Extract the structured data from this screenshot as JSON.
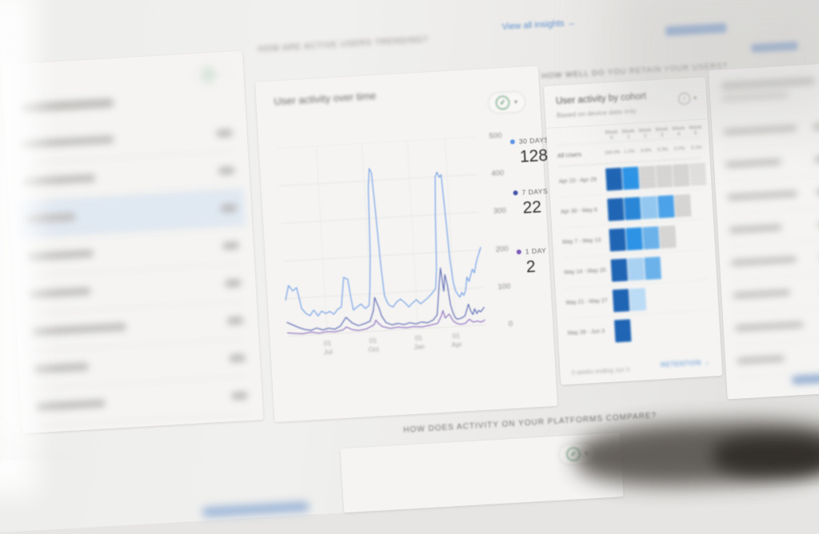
{
  "header": {
    "insights_link": "View all insights →"
  },
  "sections": {
    "trending_header": "HOW ARE ACTIVE USERS TRENDING?",
    "retain_header": "HOW WELL DO YOU RETAIN YOUR USERS?",
    "platforms_header": "HOW DOES ACTIVITY ON YOUR PLATFORMS COMPARE?"
  },
  "icons": {
    "check": "✓",
    "caret": "▾",
    "info": "i"
  },
  "chart_data": [
    {
      "type": "line",
      "title": "User activity over time",
      "ylabel": "",
      "xlabel": "",
      "ylim": [
        0,
        500
      ],
      "y_ticks": [
        500,
        400,
        300,
        200,
        100,
        0
      ],
      "x_ticks": [
        [
          "01",
          "Jul"
        ],
        [
          "01",
          "Oct"
        ],
        [
          "01",
          "Jan"
        ],
        [
          "01",
          "Apr"
        ]
      ],
      "x_tick_pos": [
        20,
        43,
        66,
        85
      ],
      "grid": true,
      "legend_position": "right",
      "series": [
        {
          "name": "30 DAYS",
          "current": "128",
          "color": "#5793f3",
          "points": [
            [
              0,
              95
            ],
            [
              2,
              135
            ],
            [
              4,
              120
            ],
            [
              6,
              128
            ],
            [
              8,
              72
            ],
            [
              10,
              58
            ],
            [
              12,
              52
            ],
            [
              14,
              66
            ],
            [
              16,
              50
            ],
            [
              18,
              62
            ],
            [
              20,
              55
            ],
            [
              22,
              60
            ],
            [
              24,
              52
            ],
            [
              26,
              64
            ],
            [
              28,
              70
            ],
            [
              30,
              148
            ],
            [
              32,
              142
            ],
            [
              33,
              95
            ],
            [
              34,
              60
            ],
            [
              36,
              68
            ],
            [
              38,
              75
            ],
            [
              40,
              62
            ],
            [
              42,
              70
            ],
            [
              43,
              120
            ],
            [
              44,
              200
            ],
            [
              45,
              380
            ],
            [
              46,
              432
            ],
            [
              47,
              420
            ],
            [
              48,
              310
            ],
            [
              49,
              180
            ],
            [
              50,
              95
            ],
            [
              51,
              78
            ],
            [
              52,
              68
            ],
            [
              54,
              62
            ],
            [
              56,
              75
            ],
            [
              58,
              82
            ],
            [
              60,
              72
            ],
            [
              62,
              60
            ],
            [
              64,
              70
            ],
            [
              66,
              78
            ],
            [
              68,
              66
            ],
            [
              70,
              74
            ],
            [
              72,
              82
            ],
            [
              74,
              92
            ],
            [
              76,
              105
            ],
            [
              77,
              160
            ],
            [
              78,
              300
            ],
            [
              79,
              400
            ],
            [
              80,
              412
            ],
            [
              81,
              398
            ],
            [
              82,
              405
            ],
            [
              83,
              300
            ],
            [
              84,
              180
            ],
            [
              85,
              120
            ],
            [
              86,
              95
            ],
            [
              87,
              85
            ],
            [
              88,
              78
            ],
            [
              89,
              90
            ],
            [
              90,
              82
            ],
            [
              91,
              95
            ],
            [
              92,
              130
            ],
            [
              93,
              118
            ],
            [
              94,
              135
            ],
            [
              95,
              150
            ],
            [
              96,
              140
            ],
            [
              97,
              165
            ],
            [
              98,
              180
            ],
            [
              99,
              195
            ],
            [
              100,
              208
            ]
          ]
        },
        {
          "name": "7 DAYS",
          "current": "22",
          "color": "#3f51b5",
          "points": [
            [
              0,
              38
            ],
            [
              3,
              30
            ],
            [
              6,
              22
            ],
            [
              9,
              16
            ],
            [
              12,
              13
            ],
            [
              15,
              18
            ],
            [
              18,
              12
            ],
            [
              21,
              16
            ],
            [
              24,
              12
            ],
            [
              27,
              20
            ],
            [
              30,
              42
            ],
            [
              33,
              26
            ],
            [
              36,
              18
            ],
            [
              39,
              22
            ],
            [
              42,
              28
            ],
            [
              44,
              55
            ],
            [
              45,
              90
            ],
            [
              46,
              75
            ],
            [
              47,
              60
            ],
            [
              48,
              40
            ],
            [
              50,
              22
            ],
            [
              53,
              15
            ],
            [
              56,
              18
            ],
            [
              59,
              14
            ],
            [
              62,
              18
            ],
            [
              65,
              14
            ],
            [
              68,
              18
            ],
            [
              71,
              15
            ],
            [
              74,
              22
            ],
            [
              76,
              35
            ],
            [
              78,
              120
            ],
            [
              79,
              158
            ],
            [
              80,
              96
            ],
            [
              81,
              140
            ],
            [
              82,
              110
            ],
            [
              83,
              60
            ],
            [
              84,
              38
            ],
            [
              85,
              25
            ],
            [
              86,
              20
            ],
            [
              88,
              22
            ],
            [
              90,
              28
            ],
            [
              92,
              58
            ],
            [
              93,
              40
            ],
            [
              94,
              30
            ],
            [
              95,
              45
            ],
            [
              96,
              32
            ],
            [
              97,
              40
            ],
            [
              98,
              36
            ],
            [
              99,
              42
            ],
            [
              100,
              48
            ]
          ]
        },
        {
          "name": "1 DAY",
          "current": "2",
          "color": "#7e57c2",
          "points": [
            [
              0,
              10
            ],
            [
              4,
              7
            ],
            [
              8,
              5
            ],
            [
              12,
              8
            ],
            [
              16,
              4
            ],
            [
              20,
              7
            ],
            [
              24,
              5
            ],
            [
              28,
              9
            ],
            [
              30,
              16
            ],
            [
              33,
              8
            ],
            [
              36,
              5
            ],
            [
              40,
              8
            ],
            [
              44,
              18
            ],
            [
              45,
              30
            ],
            [
              46,
              22
            ],
            [
              48,
              12
            ],
            [
              52,
              6
            ],
            [
              56,
              8
            ],
            [
              60,
              5
            ],
            [
              64,
              7
            ],
            [
              68,
              5
            ],
            [
              72,
              8
            ],
            [
              76,
              12
            ],
            [
              78,
              30
            ],
            [
              79,
              45
            ],
            [
              80,
              25
            ],
            [
              82,
              35
            ],
            [
              84,
              15
            ],
            [
              86,
              8
            ],
            [
              88,
              6
            ],
            [
              90,
              8
            ],
            [
              92,
              18
            ],
            [
              94,
              10
            ],
            [
              96,
              12
            ],
            [
              98,
              9
            ],
            [
              100,
              14
            ]
          ]
        }
      ]
    },
    {
      "type": "heatmap",
      "title": "User activity by cohort",
      "subtitle": "Based on device data only",
      "columns": [
        "Week 0",
        "Week 1",
        "Week 2",
        "Week 3",
        "Week 4",
        "Week 5"
      ],
      "all_users": {
        "label": "All Users",
        "values": [
          "100.0%",
          "1.1%",
          "0.6%",
          "0.3%",
          "0.2%",
          "0.1%"
        ]
      },
      "rows": [
        {
          "label": "Apr 23 - Apr 29",
          "cells": [
            "#1565c0",
            "#2196f3",
            "#d9d8d6",
            "#d9d8d6",
            "#d9d8d6",
            "#e3e2e0"
          ]
        },
        {
          "label": "Apr 30 - May 6",
          "cells": [
            "#1565c0",
            "#1e88e5",
            "#90caf9",
            "#42a5f5",
            "#d9d8d6",
            ""
          ]
        },
        {
          "label": "May 7 - May 13",
          "cells": [
            "#1565c0",
            "#2196f3",
            "#64b5f6",
            "#d9d8d6",
            "",
            ""
          ]
        },
        {
          "label": "May 14 - May 20",
          "cells": [
            "#1565c0",
            "#a6d4fa",
            "#64b5f6",
            "",
            "",
            ""
          ]
        },
        {
          "label": "May 21 - May 27",
          "cells": [
            "#1565c0",
            "#bbdefb",
            "",
            "",
            "",
            ""
          ]
        },
        {
          "label": "May 28 - Jun 3",
          "cells": [
            "#1565c0",
            "",
            "",
            "",
            "",
            ""
          ]
        }
      ],
      "footer_note": "5 weeks ending Jun 3",
      "footer_link": "RETENTION →"
    }
  ]
}
